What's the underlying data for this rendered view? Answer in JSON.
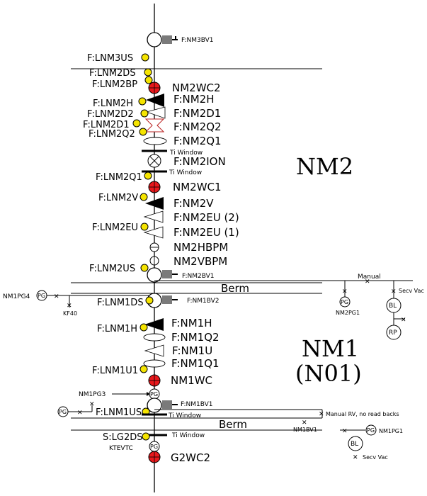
{
  "sections": {
    "nm2": "NM2",
    "nm1": "NM1",
    "nm1_sub": "(N01)"
  },
  "berm": [
    "Berm",
    "Berm"
  ],
  "ti_window": [
    "Ti Window",
    "Ti Window",
    "Ti Window",
    "Ti Window"
  ],
  "labels": {
    "nm3bv1": "F:NM3BV1",
    "lnm3us": "F:LNM3US",
    "lnm2ds": "F:LNM2DS",
    "lnm2bp": "F:LNM2BP",
    "nm2wc2": "NM2WC2",
    "lnm2h": "F:LNM2H",
    "nm2h": "F:NM2H",
    "lnm2d2": "F:LNM2D2",
    "nm2d1": "F:NM2D1",
    "lnm2d1": "F:LNM2D1",
    "nm2q2": "F:NM2Q2",
    "lnm2q2": "F:LNM2Q2",
    "nm2q1": "F:NM2Q1",
    "nm2ion": "F:NM2ION",
    "lnm2q1": "F:LNM2Q1",
    "nm2wc1": "NM2WC1",
    "lnm2v": "F:LNM2V",
    "nm2v": "F:NM2V",
    "nm2eu2": "F:NM2EU (2)",
    "lnm2eu": "F:LNM2EU",
    "nm2eu1": "F:NM2EU (1)",
    "nm2hbpm": "NM2HBPM",
    "nm2vbpm": "NM2VBPM",
    "lnm2us": "F:LNM2US",
    "nm2bv1": "F:NM2BV1",
    "manual": "Manual",
    "nm1pg4": "NM1PG4",
    "kf40": "KF40",
    "lnm1ds": "F:LNM1DS",
    "nm1bv2": "F:NM1BV2",
    "nm2pg1": "NM2PG1",
    "secv_vac": "Secv Vac",
    "lnm1h": "F:LNM1H",
    "nm1h": "F:NM1H",
    "nm1q2": "F:NM1Q2",
    "nm1u": "F:NM1U",
    "lnm1u1": "F:LNM1U1",
    "nm1q1": "F:NM1Q1",
    "nm1wc": "NM1WC",
    "nm1pg3": "NM1PG3",
    "nm1bv1": "F:NM1BV1",
    "lnm1us": "F:LNM1US",
    "manual_rv": "Manual RV, no read backs",
    "nm1bv1_small": "NM1BV1",
    "lg2ds": "S:LG2DS",
    "nm1pg1": "NM1PG1",
    "ktevtc": "KTEVTC",
    "g2wc2": "G2WC2",
    "secv_vac2": "Secv Vac"
  },
  "badges": {
    "pg": "PG",
    "bl": "BL",
    "rp": "RP"
  },
  "colors": {
    "yellow": "#f5e400",
    "red": "#e8181c",
    "valve_gray": "#7a7a7a",
    "line": "#000000"
  }
}
